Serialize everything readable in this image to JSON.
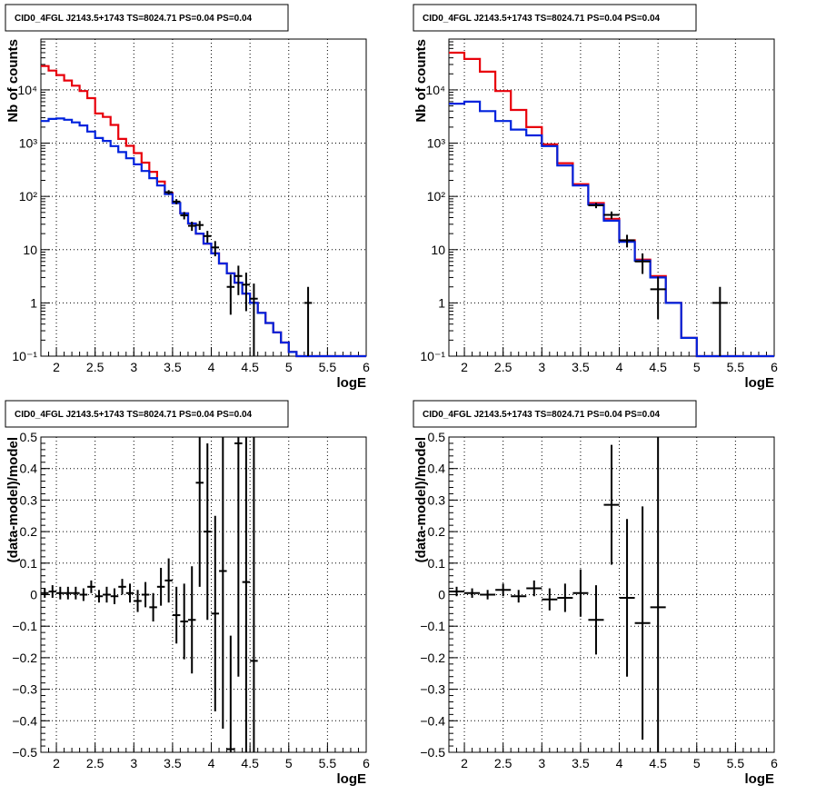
{
  "colors": {
    "total_model": "#e8000b",
    "source_model": "#0022dd",
    "data": "#000000",
    "grid": "#000000"
  },
  "chart_data": [
    {
      "type": "line",
      "title": "CID0_4FGL J2143.5+1743 TS=8024.71 PS=0.04 PS=0.04",
      "xlabel": "logE",
      "ylabel": "Nb of counts",
      "xlim": [
        1.8,
        6
      ],
      "ylim": [
        0.1,
        90000
      ],
      "yscale": "log",
      "grid": true,
      "xticks": [
        2,
        2.5,
        3,
        3.5,
        4,
        4.5,
        5,
        5.5,
        6
      ],
      "xtick_labels": [
        "2",
        "2.5",
        "3",
        "3.5",
        "4",
        "4.5",
        "5",
        "5.5",
        "6"
      ],
      "yticks": [
        0.1,
        1,
        10,
        100,
        1000,
        10000
      ],
      "ytick_labels": [
        "10⁻¹",
        "1",
        "10",
        "10²",
        "10³",
        "10⁴"
      ],
      "bin_edges": [
        1.8,
        1.9,
        2.0,
        2.1,
        2.2,
        2.3,
        2.4,
        2.5,
        2.6,
        2.7,
        2.8,
        2.9,
        3.0,
        3.1,
        3.2,
        3.3,
        3.4,
        3.5,
        3.6,
        3.7,
        3.8,
        3.9,
        4.0,
        4.1,
        4.2,
        4.3,
        4.4,
        4.5,
        4.6,
        4.7,
        4.8,
        4.9,
        5.0,
        5.1,
        5.2,
        5.3,
        5.4,
        5.5,
        5.6,
        5.7,
        5.8,
        5.9,
        6.0
      ],
      "series": [
        {
          "role": "total",
          "values": [
            28000,
            23000,
            19000,
            15000,
            12000,
            9500,
            7000,
            3600,
            3100,
            2200,
            1200,
            890,
            650,
            430,
            290,
            190,
            115,
            75,
            48,
            31,
            20,
            13,
            8.5,
            5.5,
            3.6,
            2.4,
            1.5,
            1.0,
            0.65,
            0.42,
            0.28,
            0.18,
            0.12,
            0.1,
            0.1,
            0.1,
            0.1,
            0.1,
            0.1,
            0.1,
            0.1,
            0.1
          ]
        },
        {
          "role": "source",
          "values": [
            2600,
            2850,
            2900,
            2750,
            2450,
            2150,
            1650,
            1250,
            1100,
            880,
            680,
            520,
            400,
            300,
            220,
            160,
            110,
            75,
            48,
            31,
            20,
            13,
            8.5,
            5.5,
            3.6,
            2.4,
            1.5,
            1.0,
            0.65,
            0.42,
            0.28,
            0.18,
            0.12,
            0.1,
            0.1,
            0.1,
            0.1,
            0.1,
            0.1,
            0.1,
            0.1,
            0.1
          ]
        }
      ],
      "points": [
        {
          "x": 3.45,
          "y": 120,
          "err": 11,
          "dx": 0.05
        },
        {
          "x": 3.55,
          "y": 80,
          "err": 9,
          "dx": 0.05
        },
        {
          "x": 3.65,
          "y": 44,
          "err": 7,
          "dx": 0.05
        },
        {
          "x": 3.75,
          "y": 28,
          "err": 5.5,
          "dx": 0.05
        },
        {
          "x": 3.85,
          "y": 29,
          "err": 5.5,
          "dx": 0.05
        },
        {
          "x": 3.95,
          "y": 18,
          "err": 4.5,
          "dx": 0.05
        },
        {
          "x": 4.05,
          "y": 11,
          "err": 3.5,
          "dx": 0.05
        },
        {
          "x": 4.25,
          "y": 2,
          "err": 1.4,
          "dx": 0.05
        },
        {
          "x": 4.35,
          "y": 3.2,
          "err": 1.8,
          "dx": 0.05
        },
        {
          "x": 4.45,
          "y": 2.2,
          "err": 1.5,
          "dx": 0.05
        },
        {
          "x": 4.55,
          "y": 1.2,
          "err": 1.1,
          "dx": 0.05
        },
        {
          "x": 5.25,
          "y": 1,
          "err": 1,
          "dx": 0.05
        }
      ]
    },
    {
      "type": "line",
      "title": "CID0_4FGL J2143.5+1743 TS=8024.71 PS=0.04 PS=0.04",
      "xlabel": "logE",
      "ylabel": "Nb of counts",
      "xlim": [
        1.8,
        6
      ],
      "ylim": [
        0.1,
        90000
      ],
      "yscale": "log",
      "grid": true,
      "xticks": [
        2,
        2.5,
        3,
        3.5,
        4,
        4.5,
        5,
        5.5,
        6
      ],
      "xtick_labels": [
        "2",
        "2.5",
        "3",
        "3.5",
        "4",
        "4.5",
        "5",
        "5.5",
        "6"
      ],
      "yticks": [
        0.1,
        1,
        10,
        100,
        1000,
        10000
      ],
      "ytick_labels": [
        "10⁻¹",
        "1",
        "10",
        "10²",
        "10³",
        "10⁴"
      ],
      "bin_edges": [
        1.8,
        2.0,
        2.2,
        2.4,
        2.6,
        2.8,
        3.0,
        3.2,
        3.4,
        3.6,
        3.8,
        4.0,
        4.2,
        4.4,
        4.6,
        4.8,
        5.0,
        5.2,
        5.4,
        5.6,
        5.8,
        6.0
      ],
      "series": [
        {
          "role": "total",
          "values": [
            50000,
            38000,
            22000,
            9500,
            4200,
            2000,
            950,
            420,
            170,
            75,
            38,
            15,
            6.5,
            3.2,
            1.0,
            0.22,
            0.1,
            0.1,
            0.1,
            0.1,
            0.1
          ]
        },
        {
          "role": "source",
          "values": [
            5500,
            6000,
            4000,
            2600,
            1800,
            1400,
            880,
            380,
            160,
            70,
            35,
            14,
            6.2,
            3.0,
            1.0,
            0.22,
            0.1,
            0.1,
            0.1,
            0.1,
            0.1
          ]
        }
      ],
      "points": [
        {
          "x": 3.7,
          "y": 68,
          "err": 8,
          "dx": 0.1
        },
        {
          "x": 3.9,
          "y": 45,
          "err": 7,
          "dx": 0.1
        },
        {
          "x": 4.1,
          "y": 15,
          "err": 4,
          "dx": 0.1
        },
        {
          "x": 4.3,
          "y": 6,
          "err": 2.5,
          "dx": 0.1
        },
        {
          "x": 4.5,
          "y": 1.8,
          "err": 1.3,
          "dx": 0.1
        },
        {
          "x": 5.3,
          "y": 1,
          "err": 1,
          "dx": 0.1
        }
      ]
    },
    {
      "type": "scatter",
      "title": "CID0_4FGL J2143.5+1743 TS=8024.71 PS=0.04 PS=0.04",
      "xlabel": "logE",
      "ylabel": "(data-model)/model",
      "xlim": [
        1.8,
        6
      ],
      "ylim": [
        -0.5,
        0.5
      ],
      "grid": true,
      "xticks": [
        2,
        2.5,
        3,
        3.5,
        4,
        4.5,
        5,
        5.5,
        6
      ],
      "xtick_labels": [
        "2",
        "2.5",
        "3",
        "3.5",
        "4",
        "4.5",
        "5",
        "5.5",
        "6"
      ],
      "yticks": [
        -0.5,
        -0.4,
        -0.3,
        -0.2,
        -0.1,
        0,
        0.1,
        0.2,
        0.3,
        0.4,
        0.5
      ],
      "ytick_labels": [
        "−0.5",
        "−0.4",
        "−0.3",
        "−0.2",
        "−0.1",
        "0",
        "0.1",
        "0.2",
        "0.3",
        "0.4",
        "0.5"
      ],
      "points": [
        {
          "x": 1.85,
          "y": 0.005,
          "err": 0.015,
          "dx": 0.05
        },
        {
          "x": 1.95,
          "y": 0.01,
          "err": 0.02,
          "dx": 0.05
        },
        {
          "x": 2.05,
          "y": 0.005,
          "err": 0.02,
          "dx": 0.05
        },
        {
          "x": 2.15,
          "y": 0.005,
          "err": 0.02,
          "dx": 0.05
        },
        {
          "x": 2.25,
          "y": 0.005,
          "err": 0.02,
          "dx": 0.05
        },
        {
          "x": 2.35,
          "y": 0.0,
          "err": 0.02,
          "dx": 0.05
        },
        {
          "x": 2.45,
          "y": 0.025,
          "err": 0.02,
          "dx": 0.05
        },
        {
          "x": 2.55,
          "y": -0.005,
          "err": 0.02,
          "dx": 0.05
        },
        {
          "x": 2.65,
          "y": 0.0,
          "err": 0.025,
          "dx": 0.05
        },
        {
          "x": 2.75,
          "y": -0.005,
          "err": 0.025,
          "dx": 0.05
        },
        {
          "x": 2.85,
          "y": 0.025,
          "err": 0.025,
          "dx": 0.05
        },
        {
          "x": 2.95,
          "y": 0.005,
          "err": 0.03,
          "dx": 0.05
        },
        {
          "x": 3.05,
          "y": -0.02,
          "err": 0.035,
          "dx": 0.05
        },
        {
          "x": 3.15,
          "y": 0.0,
          "err": 0.04,
          "dx": 0.05
        },
        {
          "x": 3.25,
          "y": -0.04,
          "err": 0.045,
          "dx": 0.05
        },
        {
          "x": 3.35,
          "y": 0.025,
          "err": 0.06,
          "dx": 0.05
        },
        {
          "x": 3.45,
          "y": 0.045,
          "err": 0.07,
          "dx": 0.05
        },
        {
          "x": 3.55,
          "y": -0.065,
          "err": 0.09,
          "dx": 0.05
        },
        {
          "x": 3.65,
          "y": -0.085,
          "err": 0.12,
          "dx": 0.05
        },
        {
          "x": 3.75,
          "y": -0.08,
          "err": 0.17,
          "dx": 0.05
        },
        {
          "x": 3.85,
          "y": 0.355,
          "err": 0.33,
          "dx": 0.05
        },
        {
          "x": 3.95,
          "y": 0.2,
          "err": 0.28,
          "dx": 0.05
        },
        {
          "x": 4.05,
          "y": -0.06,
          "err": 0.31,
          "dx": 0.05
        },
        {
          "x": 4.15,
          "y": 0.075,
          "err": 0.5,
          "dx": 0.05
        },
        {
          "x": 4.25,
          "y": -0.49,
          "err": 0.36,
          "dx": 0.05
        },
        {
          "x": 4.35,
          "y": 0.48,
          "err": 0.74,
          "dx": 0.05
        },
        {
          "x": 4.45,
          "y": 0.04,
          "err": 1.0,
          "dx": 0.05
        },
        {
          "x": 4.55,
          "y": -0.21,
          "err": 1.0,
          "dx": 0.05
        }
      ]
    },
    {
      "type": "scatter",
      "title": "CID0_4FGL J2143.5+1743 TS=8024.71 PS=0.04 PS=0.04",
      "xlabel": "logE",
      "ylabel": "(data-model)/model",
      "xlim": [
        1.8,
        6
      ],
      "ylim": [
        -0.5,
        0.5
      ],
      "grid": true,
      "xticks": [
        2,
        2.5,
        3,
        3.5,
        4,
        4.5,
        5,
        5.5,
        6
      ],
      "xtick_labels": [
        "2",
        "2.5",
        "3",
        "3.5",
        "4",
        "4.5",
        "5",
        "5.5",
        "6"
      ],
      "yticks": [
        -0.5,
        -0.4,
        -0.3,
        -0.2,
        -0.1,
        0,
        0.1,
        0.2,
        0.3,
        0.4,
        0.5
      ],
      "ytick_labels": [
        "−0.5",
        "−0.4",
        "−0.3",
        "−0.2",
        "−0.1",
        "0",
        "0.1",
        "0.2",
        "0.3",
        "0.4",
        "0.5"
      ],
      "points": [
        {
          "x": 1.9,
          "y": 0.01,
          "err": 0.015,
          "dx": 0.1
        },
        {
          "x": 2.1,
          "y": 0.005,
          "err": 0.015,
          "dx": 0.1
        },
        {
          "x": 2.3,
          "y": 0.0,
          "err": 0.015,
          "dx": 0.1
        },
        {
          "x": 2.5,
          "y": 0.015,
          "err": 0.02,
          "dx": 0.1
        },
        {
          "x": 2.7,
          "y": -0.005,
          "err": 0.02,
          "dx": 0.1
        },
        {
          "x": 2.9,
          "y": 0.02,
          "err": 0.025,
          "dx": 0.1
        },
        {
          "x": 3.1,
          "y": -0.015,
          "err": 0.035,
          "dx": 0.1
        },
        {
          "x": 3.3,
          "y": -0.01,
          "err": 0.045,
          "dx": 0.1
        },
        {
          "x": 3.5,
          "y": 0.005,
          "err": 0.075,
          "dx": 0.1
        },
        {
          "x": 3.7,
          "y": -0.08,
          "err": 0.11,
          "dx": 0.1
        },
        {
          "x": 3.9,
          "y": 0.285,
          "err": 0.19,
          "dx": 0.1
        },
        {
          "x": 4.1,
          "y": -0.01,
          "err": 0.25,
          "dx": 0.1
        },
        {
          "x": 4.3,
          "y": -0.09,
          "err": 0.37,
          "dx": 0.1
        },
        {
          "x": 4.5,
          "y": -0.04,
          "err": 1.0,
          "dx": 0.1
        }
      ]
    }
  ]
}
